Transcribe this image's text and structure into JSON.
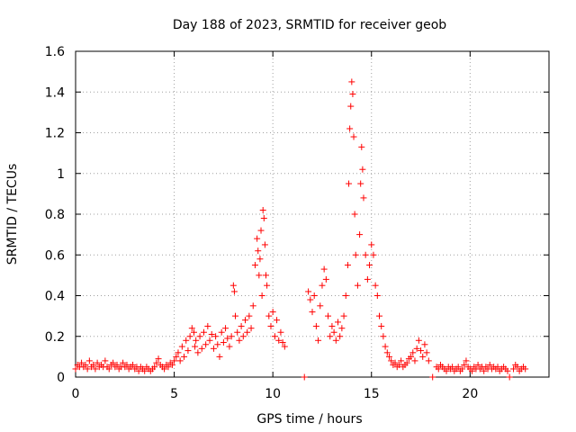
{
  "chart_data": {
    "type": "scatter",
    "title": "Day 188 of 2023, SRMTID for receiver geob",
    "xlabel": "GPS time / hours",
    "ylabel": "SRMTID / TECUs",
    "xlim": [
      0,
      24
    ],
    "ylim": [
      0,
      1.6
    ],
    "xticks": [
      0,
      5,
      10,
      15,
      20
    ],
    "yticks": [
      0,
      0.2,
      0.4,
      0.6,
      0.8,
      1,
      1.2,
      1.4,
      1.6
    ],
    "xtick_labels": [
      "0",
      "5",
      "10",
      "15",
      "20"
    ],
    "ytick_labels": [
      "0",
      "0.2",
      "0.4",
      "0.6",
      "0.8",
      "1",
      "1.2",
      "1.4",
      "1.6"
    ],
    "grid": true,
    "marker": "plus",
    "color": "#ff0000",
    "series": [
      {
        "name": "SRMTID",
        "points": [
          [
            0.0,
            0.04
          ],
          [
            0.1,
            0.06
          ],
          [
            0.2,
            0.05
          ],
          [
            0.3,
            0.07
          ],
          [
            0.4,
            0.05
          ],
          [
            0.5,
            0.06
          ],
          [
            0.6,
            0.04
          ],
          [
            0.7,
            0.08
          ],
          [
            0.8,
            0.05
          ],
          [
            0.9,
            0.06
          ],
          [
            1.0,
            0.04
          ],
          [
            1.1,
            0.07
          ],
          [
            1.2,
            0.05
          ],
          [
            1.3,
            0.06
          ],
          [
            1.4,
            0.05
          ],
          [
            1.5,
            0.08
          ],
          [
            1.6,
            0.05
          ],
          [
            1.7,
            0.04
          ],
          [
            1.8,
            0.06
          ],
          [
            1.9,
            0.07
          ],
          [
            2.0,
            0.05
          ],
          [
            2.1,
            0.06
          ],
          [
            2.2,
            0.04
          ],
          [
            2.3,
            0.05
          ],
          [
            2.4,
            0.07
          ],
          [
            2.5,
            0.05
          ],
          [
            2.6,
            0.06
          ],
          [
            2.7,
            0.04
          ],
          [
            2.8,
            0.05
          ],
          [
            2.9,
            0.06
          ],
          [
            3.0,
            0.04
          ],
          [
            3.1,
            0.05
          ],
          [
            3.2,
            0.03
          ],
          [
            3.3,
            0.05
          ],
          [
            3.4,
            0.04
          ],
          [
            3.5,
            0.03
          ],
          [
            3.6,
            0.05
          ],
          [
            3.7,
            0.04
          ],
          [
            3.8,
            0.03
          ],
          [
            3.9,
            0.04
          ],
          [
            4.0,
            0.05
          ],
          [
            4.1,
            0.07
          ],
          [
            4.2,
            0.09
          ],
          [
            4.3,
            0.06
          ],
          [
            4.4,
            0.05
          ],
          [
            4.5,
            0.04
          ],
          [
            4.6,
            0.06
          ],
          [
            4.7,
            0.05
          ],
          [
            4.8,
            0.07
          ],
          [
            4.9,
            0.06
          ],
          [
            5.0,
            0.08
          ],
          [
            5.1,
            0.1
          ],
          [
            5.2,
            0.12
          ],
          [
            5.3,
            0.08
          ],
          [
            5.4,
            0.15
          ],
          [
            5.5,
            0.1
          ],
          [
            5.6,
            0.18
          ],
          [
            5.7,
            0.13
          ],
          [
            5.8,
            0.2
          ],
          [
            5.9,
            0.24
          ],
          [
            6.0,
            0.22
          ],
          [
            6.05,
            0.15
          ],
          [
            6.1,
            0.18
          ],
          [
            6.2,
            0.12
          ],
          [
            6.3,
            0.2
          ],
          [
            6.4,
            0.14
          ],
          [
            6.5,
            0.22
          ],
          [
            6.6,
            0.16
          ],
          [
            6.7,
            0.25
          ],
          [
            6.8,
            0.18
          ],
          [
            6.9,
            0.21
          ],
          [
            7.0,
            0.14
          ],
          [
            7.1,
            0.2
          ],
          [
            7.2,
            0.16
          ],
          [
            7.3,
            0.1
          ],
          [
            7.4,
            0.22
          ],
          [
            7.5,
            0.17
          ],
          [
            7.6,
            0.24
          ],
          [
            7.7,
            0.19
          ],
          [
            7.8,
            0.15
          ],
          [
            7.9,
            0.2
          ],
          [
            8.0,
            0.45
          ],
          [
            8.05,
            0.42
          ],
          [
            8.1,
            0.3
          ],
          [
            8.2,
            0.22
          ],
          [
            8.3,
            0.18
          ],
          [
            8.4,
            0.25
          ],
          [
            8.5,
            0.2
          ],
          [
            8.6,
            0.28
          ],
          [
            8.7,
            0.22
          ],
          [
            8.8,
            0.3
          ],
          [
            8.9,
            0.24
          ],
          [
            9.0,
            0.35
          ],
          [
            9.1,
            0.55
          ],
          [
            9.2,
            0.68
          ],
          [
            9.25,
            0.62
          ],
          [
            9.3,
            0.5
          ],
          [
            9.35,
            0.58
          ],
          [
            9.4,
            0.72
          ],
          [
            9.45,
            0.4
          ],
          [
            9.5,
            0.82
          ],
          [
            9.55,
            0.78
          ],
          [
            9.6,
            0.65
          ],
          [
            9.65,
            0.5
          ],
          [
            9.7,
            0.45
          ],
          [
            9.8,
            0.3
          ],
          [
            9.9,
            0.25
          ],
          [
            10.0,
            0.32
          ],
          [
            10.1,
            0.2
          ],
          [
            10.2,
            0.28
          ],
          [
            10.3,
            0.18
          ],
          [
            10.4,
            0.22
          ],
          [
            10.5,
            0.17
          ],
          [
            10.6,
            0.15
          ],
          [
            11.6,
            0.0
          ],
          [
            11.8,
            0.42
          ],
          [
            11.9,
            0.38
          ],
          [
            12.0,
            0.32
          ],
          [
            12.1,
            0.4
          ],
          [
            12.2,
            0.25
          ],
          [
            12.3,
            0.18
          ],
          [
            12.4,
            0.35
          ],
          [
            12.5,
            0.45
          ],
          [
            12.6,
            0.53
          ],
          [
            12.7,
            0.48
          ],
          [
            12.8,
            0.3
          ],
          [
            12.9,
            0.2
          ],
          [
            13.0,
            0.25
          ],
          [
            13.1,
            0.22
          ],
          [
            13.2,
            0.18
          ],
          [
            13.3,
            0.27
          ],
          [
            13.4,
            0.2
          ],
          [
            13.5,
            0.24
          ],
          [
            13.6,
            0.3
          ],
          [
            13.7,
            0.4
          ],
          [
            13.8,
            0.55
          ],
          [
            13.85,
            0.95
          ],
          [
            13.9,
            1.22
          ],
          [
            13.95,
            1.33
          ],
          [
            14.0,
            1.45
          ],
          [
            14.05,
            1.39
          ],
          [
            14.1,
            1.18
          ],
          [
            14.15,
            0.8
          ],
          [
            14.2,
            0.6
          ],
          [
            14.3,
            0.45
          ],
          [
            14.4,
            0.7
          ],
          [
            14.45,
            0.95
          ],
          [
            14.5,
            1.13
          ],
          [
            14.55,
            1.02
          ],
          [
            14.6,
            0.88
          ],
          [
            14.7,
            0.6
          ],
          [
            14.8,
            0.48
          ],
          [
            14.9,
            0.55
          ],
          [
            15.0,
            0.65
          ],
          [
            15.1,
            0.6
          ],
          [
            15.2,
            0.45
          ],
          [
            15.3,
            0.4
          ],
          [
            15.4,
            0.3
          ],
          [
            15.5,
            0.25
          ],
          [
            15.6,
            0.2
          ],
          [
            15.7,
            0.15
          ],
          [
            15.8,
            0.12
          ],
          [
            15.9,
            0.1
          ],
          [
            16.0,
            0.08
          ],
          [
            16.1,
            0.06
          ],
          [
            16.2,
            0.07
          ],
          [
            16.3,
            0.05
          ],
          [
            16.4,
            0.06
          ],
          [
            16.5,
            0.08
          ],
          [
            16.6,
            0.05
          ],
          [
            16.7,
            0.06
          ],
          [
            16.8,
            0.07
          ],
          [
            16.9,
            0.09
          ],
          [
            17.0,
            0.1
          ],
          [
            17.1,
            0.12
          ],
          [
            17.2,
            0.08
          ],
          [
            17.3,
            0.14
          ],
          [
            17.4,
            0.18
          ],
          [
            17.5,
            0.13
          ],
          [
            17.6,
            0.1
          ],
          [
            17.7,
            0.16
          ],
          [
            17.8,
            0.12
          ],
          [
            17.9,
            0.08
          ],
          [
            18.1,
            0.0
          ],
          [
            18.3,
            0.05
          ],
          [
            18.4,
            0.04
          ],
          [
            18.5,
            0.06
          ],
          [
            18.6,
            0.05
          ],
          [
            18.7,
            0.04
          ],
          [
            18.8,
            0.03
          ],
          [
            18.9,
            0.05
          ],
          [
            19.0,
            0.04
          ],
          [
            19.1,
            0.05
          ],
          [
            19.2,
            0.03
          ],
          [
            19.3,
            0.04
          ],
          [
            19.4,
            0.05
          ],
          [
            19.5,
            0.03
          ],
          [
            19.6,
            0.04
          ],
          [
            19.7,
            0.06
          ],
          [
            19.8,
            0.08
          ],
          [
            19.9,
            0.05
          ],
          [
            20.0,
            0.04
          ],
          [
            20.1,
            0.03
          ],
          [
            20.2,
            0.05
          ],
          [
            20.3,
            0.04
          ],
          [
            20.4,
            0.06
          ],
          [
            20.5,
            0.04
          ],
          [
            20.6,
            0.05
          ],
          [
            20.7,
            0.03
          ],
          [
            20.8,
            0.05
          ],
          [
            20.9,
            0.04
          ],
          [
            21.0,
            0.06
          ],
          [
            21.1,
            0.04
          ],
          [
            21.2,
            0.05
          ],
          [
            21.3,
            0.04
          ],
          [
            21.4,
            0.05
          ],
          [
            21.5,
            0.03
          ],
          [
            21.6,
            0.04
          ],
          [
            21.7,
            0.05
          ],
          [
            21.8,
            0.04
          ],
          [
            21.9,
            0.03
          ],
          [
            22.0,
            0.0
          ],
          [
            22.2,
            0.04
          ],
          [
            22.3,
            0.06
          ],
          [
            22.4,
            0.05
          ],
          [
            22.5,
            0.03
          ],
          [
            22.6,
            0.04
          ],
          [
            22.7,
            0.05
          ],
          [
            22.8,
            0.04
          ]
        ]
      }
    ]
  }
}
